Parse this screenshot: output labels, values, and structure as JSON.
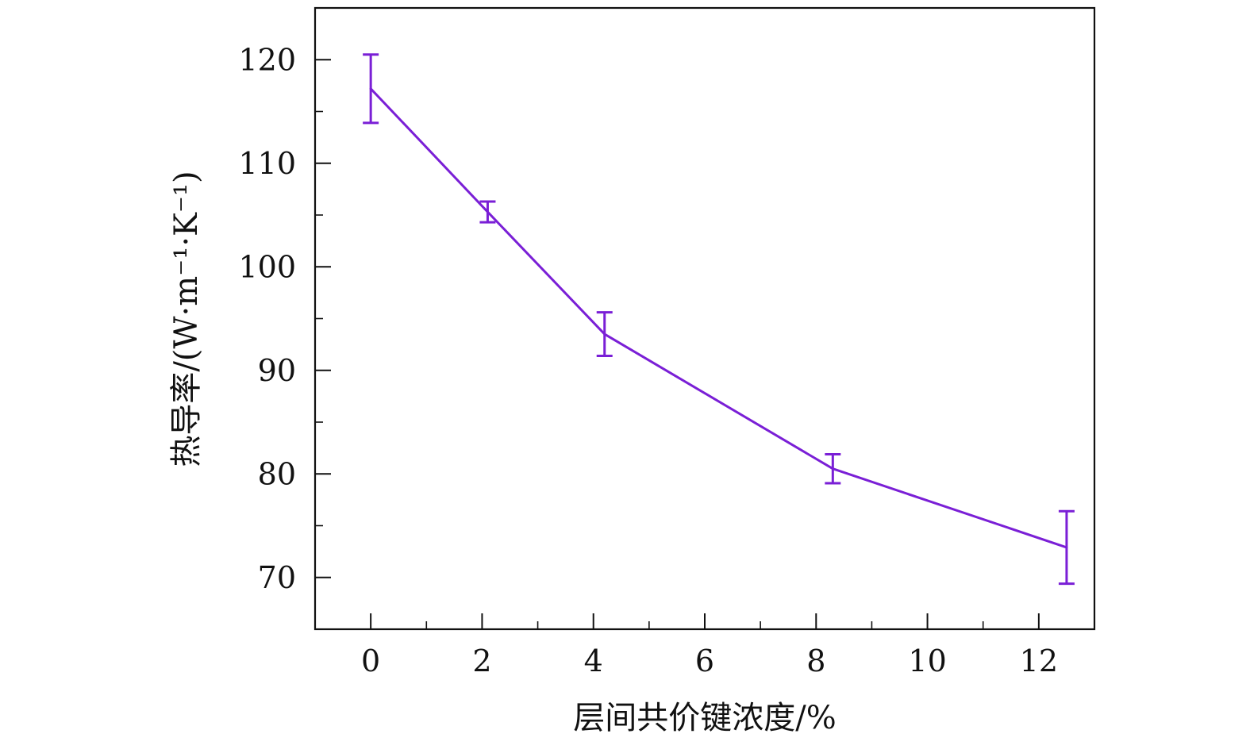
{
  "chart_data": {
    "type": "line",
    "xlabel": "层间共价键浓度/%",
    "ylabel": "热导率/(W·m⁻¹·K⁻¹)",
    "xlim": [
      -1,
      13
    ],
    "ylim": [
      65,
      125
    ],
    "xticks": [
      0,
      2,
      4,
      6,
      8,
      10,
      12
    ],
    "yticks": [
      70,
      80,
      90,
      100,
      110,
      120
    ],
    "grid": false,
    "line_color": "#7a1fd6",
    "series": [
      {
        "x": [
          0,
          2.1,
          4.2,
          8.3,
          12.5
        ],
        "y": [
          117.2,
          105.3,
          93.5,
          80.5,
          72.9
        ],
        "error": [
          3.3,
          1.0,
          2.1,
          1.4,
          3.5
        ]
      }
    ]
  }
}
